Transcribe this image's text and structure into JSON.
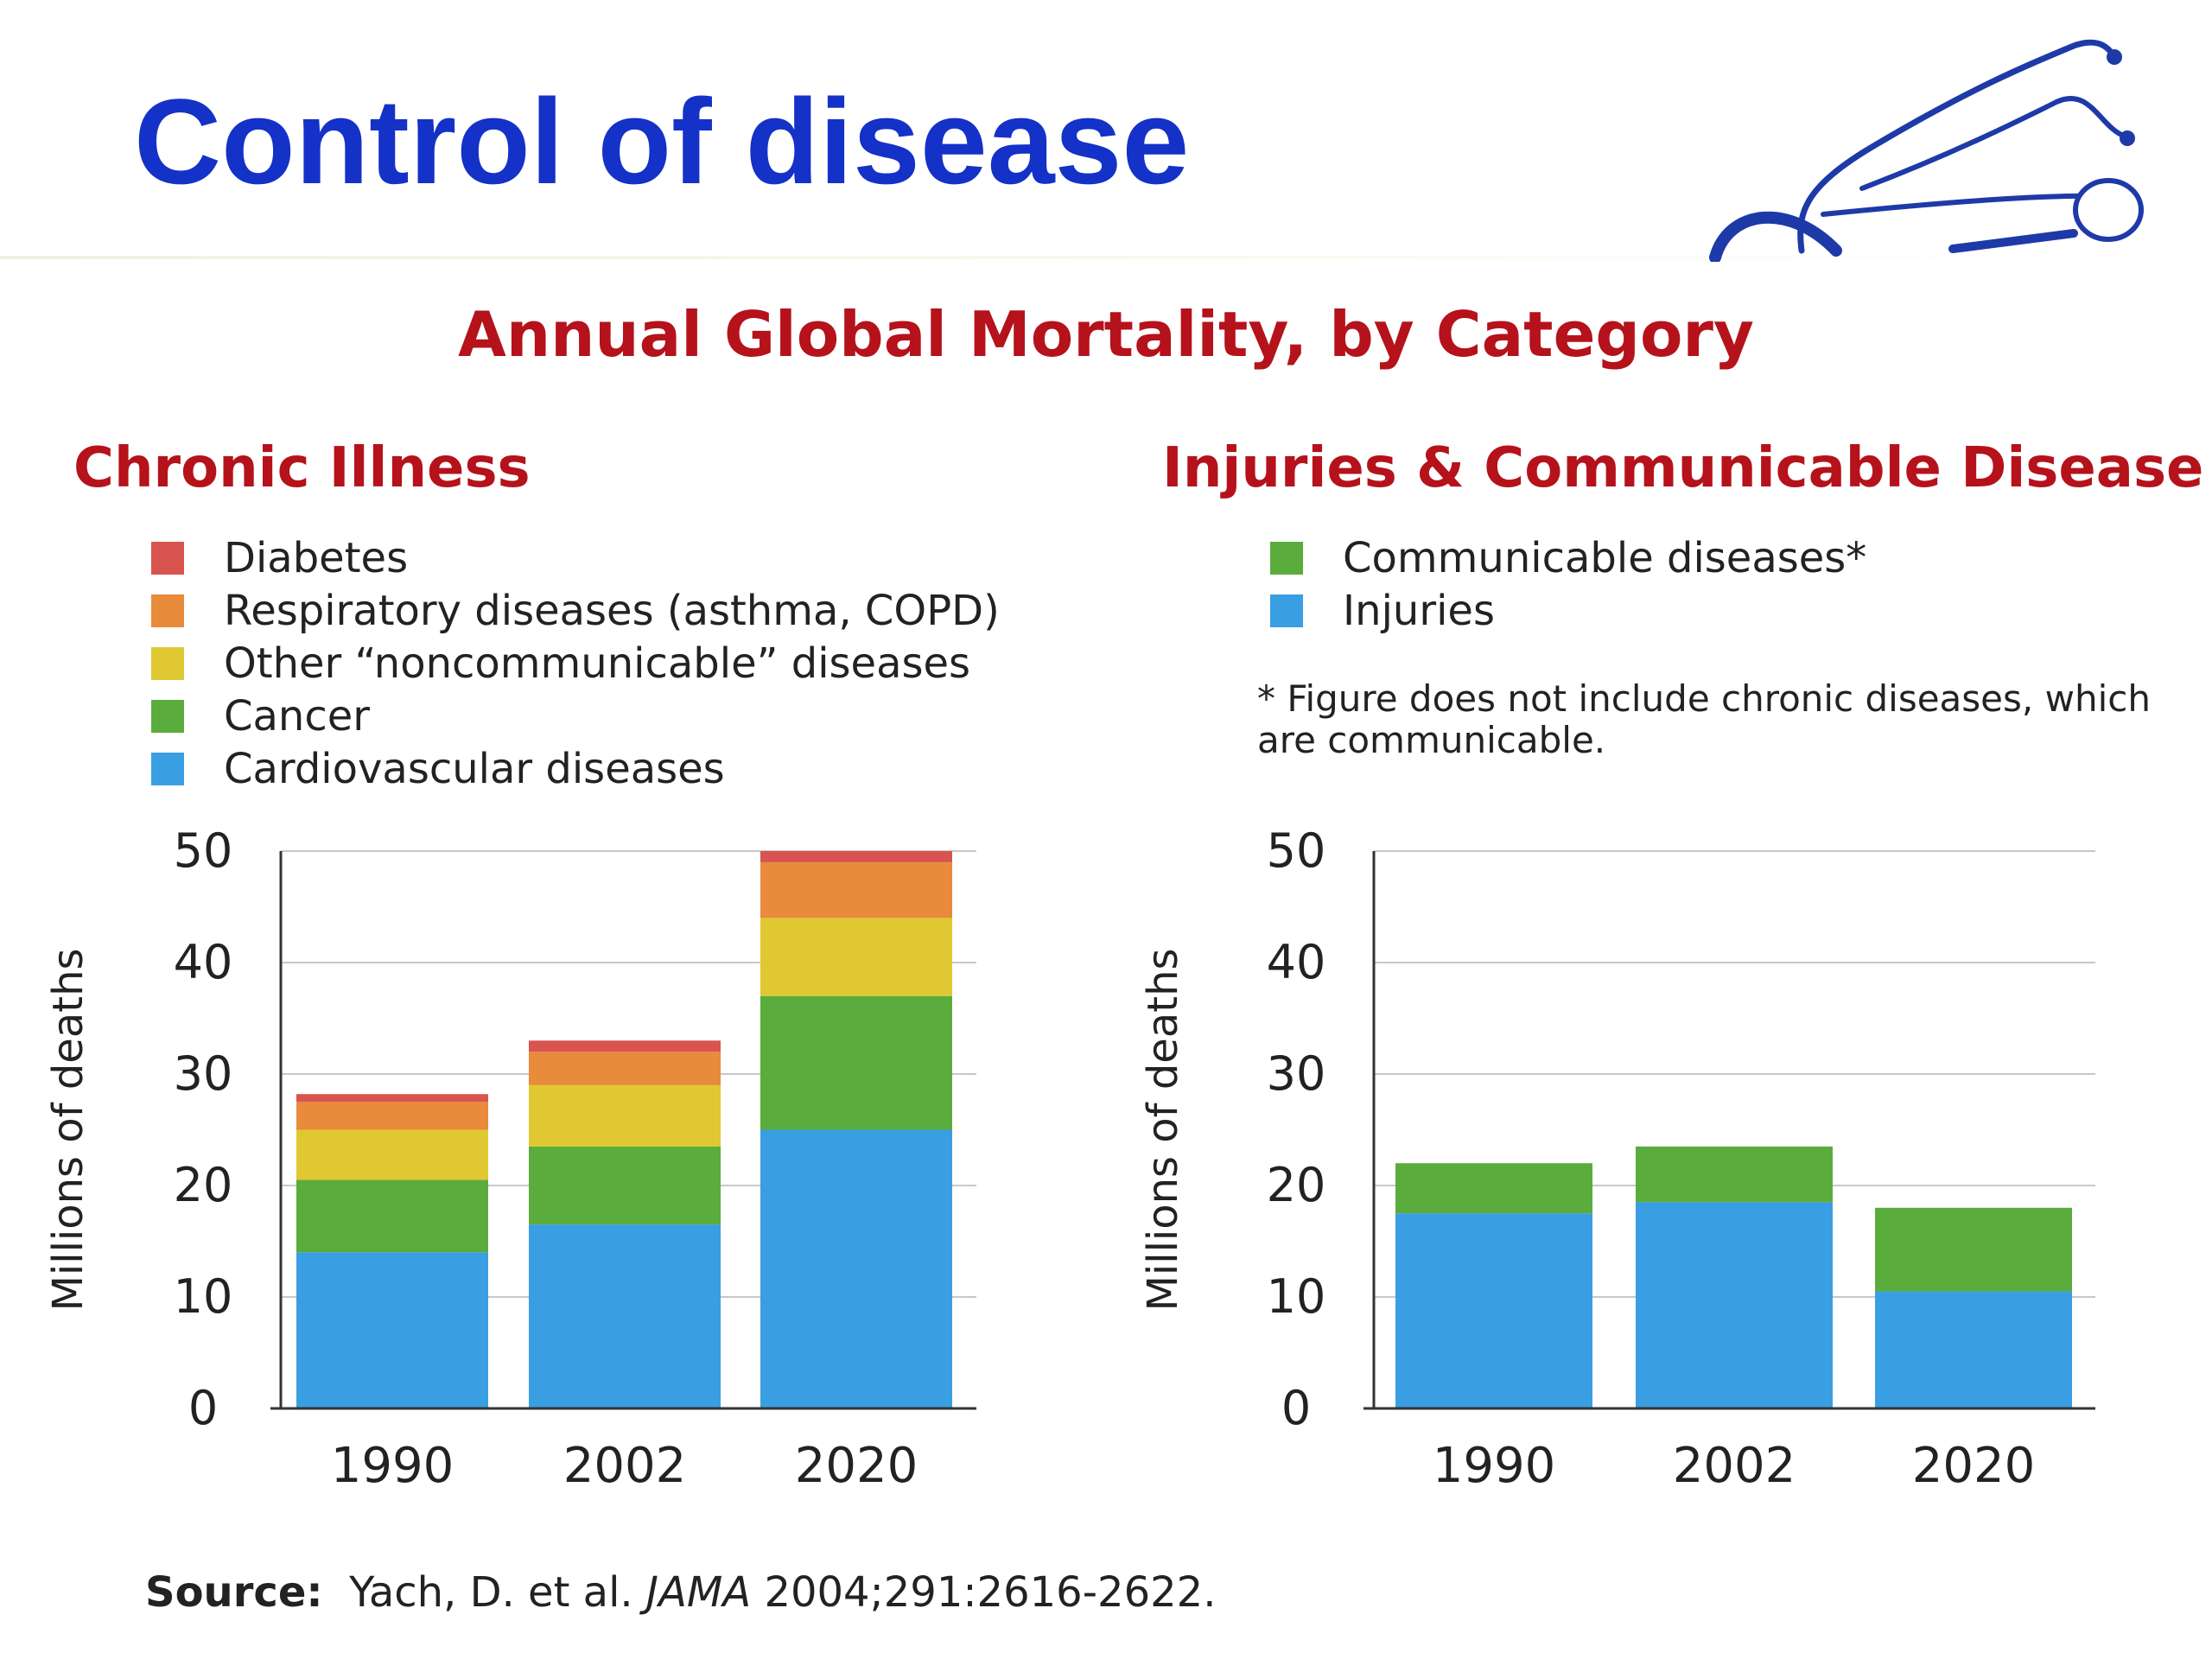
{
  "slide": {
    "title": "Control of disease"
  },
  "source": {
    "label": "Source:",
    "authors": "Yach, D. et al.",
    "journal": "JAMA",
    "citation": "2004;291:2616-2622."
  },
  "chart_data": [
    {
      "type": "bar",
      "stacked": true,
      "title": "Annual Global Mortality, by Category",
      "subtitle": "Chronic Illness",
      "ylabel": "Millions of deaths",
      "ylim": [
        0,
        50
      ],
      "yticks": [
        0,
        10,
        20,
        30,
        40,
        50
      ],
      "grid": true,
      "legend_position": "top-left",
      "categories": [
        "1990",
        "2002",
        "2020"
      ],
      "series": [
        {
          "name": "Cardiovascular diseases",
          "color": "#3a9ee3",
          "values": [
            14,
            16.5,
            25
          ]
        },
        {
          "name": "Cancer",
          "color": "#5aac3c",
          "values": [
            6.5,
            7,
            12
          ]
        },
        {
          "name": "Other “noncommunicable” diseases",
          "color": "#e0c832",
          "values": [
            4.5,
            5.5,
            7
          ]
        },
        {
          "name": "Respiratory diseases (asthma, COPD)",
          "color": "#e88b3a",
          "values": [
            2.5,
            3,
            5
          ]
        },
        {
          "name": "Diabetes",
          "color": "#d9534f",
          "values": [
            0.7,
            1,
            1
          ]
        }
      ]
    },
    {
      "type": "bar",
      "stacked": true,
      "subtitle": "Injuries & Communicable Disease",
      "ylabel": "Millions of deaths",
      "ylim": [
        0,
        50
      ],
      "yticks": [
        0,
        10,
        20,
        30,
        40,
        50
      ],
      "grid": true,
      "legend_position": "top-left",
      "footnote": "* Figure does not include chronic diseases, which are communicable.",
      "categories": [
        "1990",
        "2002",
        "2020"
      ],
      "series": [
        {
          "name": "Injuries",
          "color": "#3a9ee3",
          "values": [
            17.5,
            18.5,
            10.5
          ]
        },
        {
          "name": "Communicable diseases*",
          "color": "#5aac3c",
          "values": [
            4.5,
            5,
            7.5
          ]
        }
      ]
    }
  ]
}
